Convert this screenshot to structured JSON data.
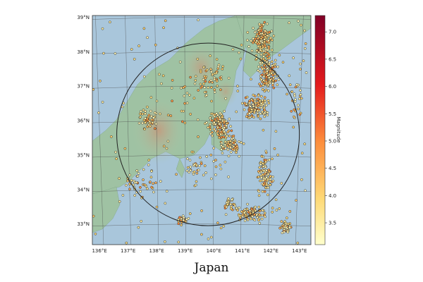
{
  "title": "Japan",
  "map": {
    "lat_labels": [
      {
        "lat": 39,
        "text": "39°N"
      },
      {
        "lat": 38,
        "text": "38°N"
      },
      {
        "lat": 37,
        "text": "37°N"
      },
      {
        "lat": 36,
        "text": "36°N"
      },
      {
        "lat": 35,
        "text": "35°N"
      },
      {
        "lat": 34,
        "text": "34°N"
      },
      {
        "lat": 33,
        "text": "33°N"
      }
    ],
    "lon_labels": [
      {
        "lon": 136,
        "text": "136°E"
      },
      {
        "lon": 137,
        "text": "137°E"
      },
      {
        "lon": 138,
        "text": "138°E"
      },
      {
        "lon": 139,
        "text": "139°E"
      },
      {
        "lon": 140,
        "text": "140°E"
      },
      {
        "lon": 141,
        "text": "141°E"
      },
      {
        "lon": 142,
        "text": "142°E"
      },
      {
        "lon": 143,
        "text": "143°E"
      }
    ],
    "circle_center": {
      "lon": 139.8,
      "lat": 35.6
    },
    "circle_radius_deg_lat": 2.65,
    "colors": {
      "sea": "#a9c6db",
      "lowland": "#9fc2a3",
      "highland": "#c9a98b",
      "graticule": "#4a4a4a"
    }
  },
  "colorbar": {
    "label": "Magnitude",
    "min": 3.1,
    "max": 7.3,
    "ticks": [
      {
        "value": 3.5,
        "text": "3.5"
      },
      {
        "value": 4.0,
        "text": "4.0"
      },
      {
        "value": 4.5,
        "text": "4.5"
      },
      {
        "value": 5.0,
        "text": "5.0"
      },
      {
        "value": 5.5,
        "text": "5.5"
      },
      {
        "value": 6.0,
        "text": "6.0"
      },
      {
        "value": 6.5,
        "text": "6.5"
      },
      {
        "value": 7.0,
        "text": "7.0"
      }
    ],
    "colormap": "YlOrRd"
  },
  "chart_data": {
    "type": "scatter",
    "series": [
      {
        "name": "",
        "points_lon_lat_mag": [
          [
            141.6,
            38.8,
            3.6
          ],
          [
            141.8,
            38.6,
            3.5
          ],
          [
            142.0,
            38.4,
            3.7
          ],
          [
            141.5,
            37.8,
            3.8
          ],
          [
            141.7,
            37.5,
            3.6
          ],
          [
            141.3,
            37.2,
            3.9
          ],
          [
            141.0,
            36.5,
            3.6
          ],
          [
            140.2,
            36.1,
            3.5
          ],
          [
            139.8,
            35.8,
            3.7
          ],
          [
            140.0,
            35.2,
            3.6
          ],
          [
            141.9,
            34.3,
            3.8
          ],
          [
            142.2,
            33.4,
            3.6
          ],
          [
            142.6,
            33.0,
            3.7
          ],
          [
            138.3,
            33.6,
            3.5
          ],
          [
            137.6,
            36.2,
            3.6
          ],
          [
            138.4,
            35.4,
            3.5
          ],
          [
            136.8,
            36.4,
            3.6
          ],
          [
            141.4,
            36.1,
            4.0
          ],
          [
            142.3,
            37.9,
            3.9
          ],
          [
            140.4,
            34.8,
            3.6
          ]
        ]
      }
    ],
    "xlabel": "",
    "ylabel": "",
    "xlim": [
      135.75,
      143.4
    ],
    "ylim": [
      32.4,
      39.05
    ]
  }
}
